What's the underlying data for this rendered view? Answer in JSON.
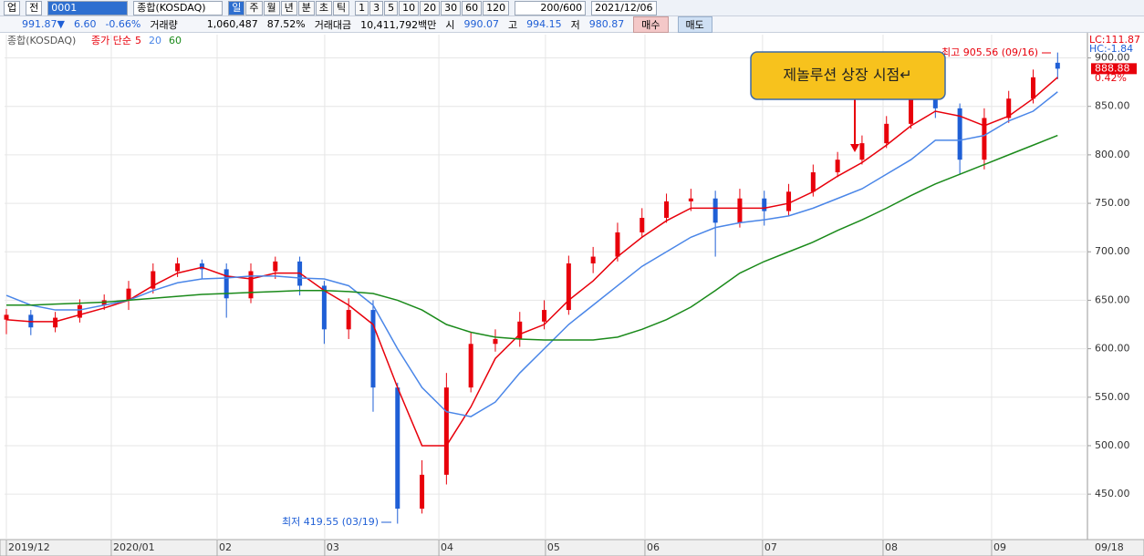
{
  "toolbar": {
    "market": "업",
    "scope": "전",
    "code": "0001",
    "name": "종합(KOSDAQ)",
    "periods": [
      "일",
      "주",
      "월",
      "년",
      "분",
      "초",
      "틱"
    ],
    "intervals": [
      "1",
      "3",
      "5",
      "10",
      "20",
      "30",
      "60",
      "120"
    ],
    "count": "200/600",
    "date": "2021/12/06"
  },
  "quote": {
    "price": "991.87▼",
    "change": "6.60",
    "rate": "-0.66%",
    "volume_label": "거래량",
    "volume": "1,060,487",
    "volume_ratio": "87.52%",
    "amount_label": "거래대금",
    "amount": "10,411,792백만",
    "open_label": "시",
    "open": "990.07",
    "high_label": "고",
    "high": "994.15",
    "low_label": "저",
    "low": "980.87",
    "buy": "매수",
    "sell": "매도"
  },
  "chart_data": {
    "type": "candlestick",
    "legend_index": "종합(KOSDAQ)",
    "legend_ma": "종가 단순",
    "categories": [
      null,
      null,
      null,
      null,
      null,
      null,
      null,
      null,
      null,
      null,
      null,
      null,
      null,
      null,
      null,
      null,
      null,
      null,
      null,
      null,
      null,
      null,
      null,
      null,
      null,
      null,
      null,
      null,
      null,
      null,
      null,
      null,
      null,
      null,
      null,
      null,
      null,
      null,
      null,
      null,
      null,
      null,
      null,
      null
    ],
    "open": [
      630,
      635,
      622,
      632,
      645,
      650,
      662,
      680,
      688,
      682,
      652,
      680,
      690,
      665,
      620,
      640,
      560,
      435,
      470,
      560,
      605,
      610,
      628,
      640,
      688,
      695,
      720,
      735,
      752,
      755,
      730,
      755,
      742,
      762,
      782,
      795,
      812,
      832,
      858,
      848,
      795,
      838,
      858,
      895
    ],
    "high": [
      641,
      640,
      638,
      651,
      656,
      670,
      688,
      694,
      692,
      688,
      688,
      695,
      695,
      670,
      652,
      650,
      565,
      485,
      575,
      617,
      620,
      638,
      650,
      696,
      705,
      730,
      745,
      760,
      765,
      763,
      765,
      763,
      770,
      790,
      803,
      820,
      840,
      866,
      866,
      853,
      848,
      866,
      888,
      905.56
    ],
    "low": [
      615,
      614,
      617,
      627,
      640,
      640,
      657,
      674,
      672,
      632,
      647,
      672,
      655,
      605,
      610,
      535,
      419.55,
      430,
      460,
      555,
      597,
      602,
      620,
      635,
      678,
      690,
      715,
      730,
      742,
      695,
      725,
      727,
      737,
      757,
      777,
      790,
      807,
      827,
      838,
      780,
      785,
      833,
      853,
      878
    ],
    "close": [
      635,
      622,
      632,
      645,
      650,
      662,
      680,
      688,
      682,
      652,
      680,
      690,
      665,
      620,
      640,
      560,
      435,
      470,
      560,
      605,
      610,
      628,
      640,
      688,
      695,
      720,
      735,
      752,
      755,
      730,
      755,
      742,
      762,
      782,
      795,
      812,
      832,
      858,
      848,
      795,
      838,
      858,
      880,
      888.88
    ],
    "up_color": "#e8000b",
    "down_color": "#1f5fd6",
    "series": [
      {
        "name": "5",
        "color": "#e8000b",
        "values": [
          630,
          628,
          628,
          635,
          642,
          650,
          665,
          678,
          684,
          675,
          672,
          678,
          678,
          660,
          645,
          625,
          560,
          500,
          500,
          540,
          590,
          615,
          625,
          650,
          670,
          695,
          715,
          732,
          745,
          745,
          745,
          745,
          750,
          762,
          778,
          792,
          810,
          830,
          845,
          840,
          830,
          840,
          858,
          880
        ]
      },
      {
        "name": "20",
        "color": "#4a86e8",
        "values": [
          655,
          645,
          640,
          640,
          645,
          650,
          660,
          668,
          672,
          673,
          675,
          675,
          673,
          672,
          665,
          645,
          600,
          560,
          535,
          530,
          545,
          575,
          600,
          625,
          645,
          665,
          685,
          700,
          715,
          725,
          730,
          733,
          737,
          745,
          755,
          765,
          780,
          795,
          815,
          815,
          820,
          835,
          845,
          865
        ]
      },
      {
        "name": "60",
        "color": "#1a8a1a",
        "values": [
          645,
          645,
          646,
          647,
          648,
          650,
          652,
          654,
          656,
          657,
          658,
          659,
          660,
          660,
          659,
          657,
          650,
          640,
          625,
          617,
          612,
          610,
          609,
          609,
          609,
          612,
          620,
          630,
          643,
          660,
          678,
          690,
          700,
          710,
          722,
          733,
          745,
          758,
          770,
          780,
          790,
          800,
          810,
          820
        ]
      }
    ],
    "ylim": [
      405,
      924
    ],
    "yticks": [
      {
        "value": 450,
        "label": "450.00"
      },
      {
        "value": 500,
        "label": "500.00"
      },
      {
        "value": 550,
        "label": "550.00"
      },
      {
        "value": 600,
        "label": "600.00"
      },
      {
        "value": 650,
        "label": "650.00"
      },
      {
        "value": 700,
        "label": "700.00"
      },
      {
        "value": 750,
        "label": "750.00"
      },
      {
        "value": 800,
        "label": "800.00"
      },
      {
        "value": 850,
        "label": "850.00"
      },
      {
        "value": 900,
        "label": "900.00"
      }
    ],
    "xlim": [
      -0.075,
      44.22
    ],
    "xticks": [
      {
        "value": 0,
        "label": "2019/12"
      },
      {
        "value": 4.29,
        "label": "2020/01"
      },
      {
        "value": 8.62,
        "label": "02"
      },
      {
        "value": 13.02,
        "label": "03"
      },
      {
        "value": 17.69,
        "label": "04"
      },
      {
        "value": 22.05,
        "label": "05"
      },
      {
        "value": 26.12,
        "label": "06"
      },
      {
        "value": 30.93,
        "label": "07"
      },
      {
        "value": 35.86,
        "label": "08"
      },
      {
        "value": 40.3,
        "label": "09"
      }
    ],
    "grid": true,
    "high_label": "최고 905.56 (09/16)",
    "low_label": "최저 419.55 (03/19)",
    "callout": "제놀루션 상장 시점↵",
    "lc": "LC:111.87",
    "hc": "HC:-1.84",
    "last_change": "0.42%",
    "last_date": "09/18"
  }
}
